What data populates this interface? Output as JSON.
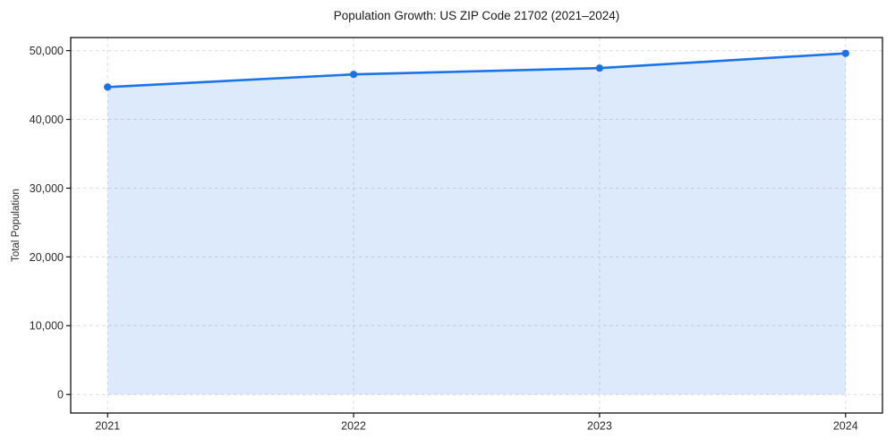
{
  "chart_data": {
    "type": "area",
    "title": "Population Growth: US ZIP Code 21702 (2021–2024)",
    "xlabel": "",
    "ylabel": "Total Population",
    "x": [
      2021,
      2022,
      2023,
      2024
    ],
    "xtick_labels": [
      "2021",
      "2022",
      "2023",
      "2024"
    ],
    "values": [
      44700,
      46550,
      47450,
      49600
    ],
    "baseline": 0,
    "ytick_values": [
      0,
      10000,
      20000,
      30000,
      40000,
      50000
    ],
    "ytick_labels": [
      "0",
      "10,000",
      "20,000",
      "30,000",
      "40,000",
      "50,000"
    ],
    "xlim": [
      2020.85,
      2024.15
    ],
    "ylim": [
      -2700,
      51900
    ],
    "grid": true,
    "legend": null,
    "marker": "circle",
    "colors": {
      "line": "#1a73e8",
      "fill": "#dceafb",
      "fill_opacity": 0.15,
      "grid": "#dcdcdc",
      "spine": "#111111",
      "title_text": "#1a1a1a",
      "tick_text": "#2b2b2b"
    }
  }
}
